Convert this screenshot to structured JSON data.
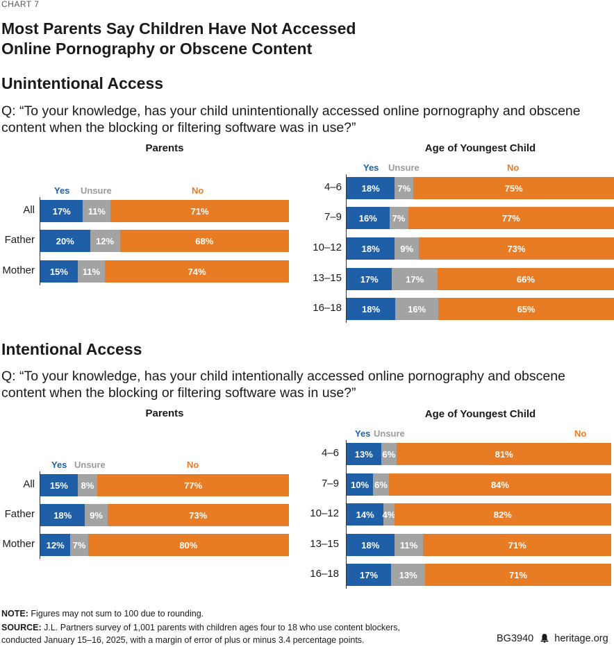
{
  "header": {
    "chart_label": "CHART 7",
    "title_line1": "Most Parents Say Children Have Not Accessed",
    "title_line2": "Online Pornography or Obscene Content"
  },
  "sections": {
    "unintentional": {
      "title": "Unintentional Access",
      "question_line1": "Q: “To your knowledge, has your child unintentionally accessed online pornography and obscene",
      "question_line2": "content when the blocking or filtering software was in use?”"
    },
    "intentional": {
      "title": "Intentional Access",
      "question_line1": "Q: “To your knowledge, has your child intentionally accessed online pornography and obscene",
      "question_line2": "content when the blocking or filtering software was in use?”"
    }
  },
  "legend": {
    "yes": "Yes",
    "unsure": "Unsure",
    "no": "No"
  },
  "colors": {
    "yes": "#1f5fa8",
    "unsure": "#a3a3a3",
    "no": "#e87c25"
  },
  "chart_data": [
    {
      "type": "bar",
      "stacked": true,
      "orientation": "horizontal",
      "title": "Parents",
      "section": "Unintentional Access",
      "categories": [
        "All",
        "Father",
        "Mother"
      ],
      "series": [
        {
          "name": "Yes",
          "values": [
            17,
            20,
            15
          ]
        },
        {
          "name": "Unsure",
          "values": [
            11,
            12,
            11
          ]
        },
        {
          "name": "No",
          "values": [
            71,
            68,
            74
          ]
        }
      ]
    },
    {
      "type": "bar",
      "stacked": true,
      "orientation": "horizontal",
      "title": "Age of Youngest Child",
      "section": "Unintentional Access",
      "categories": [
        "4–6",
        "7–9",
        "10–12",
        "13–15",
        "16–18"
      ],
      "series": [
        {
          "name": "Yes",
          "values": [
            18,
            16,
            18,
            17,
            18
          ]
        },
        {
          "name": "Unsure",
          "values": [
            7,
            7,
            9,
            17,
            16
          ]
        },
        {
          "name": "No",
          "values": [
            75,
            77,
            73,
            66,
            65
          ]
        }
      ]
    },
    {
      "type": "bar",
      "stacked": true,
      "orientation": "horizontal",
      "title": "Parents",
      "section": "Intentional Access",
      "categories": [
        "All",
        "Father",
        "Mother"
      ],
      "series": [
        {
          "name": "Yes",
          "values": [
            15,
            18,
            12
          ]
        },
        {
          "name": "Unsure",
          "values": [
            8,
            9,
            7
          ]
        },
        {
          "name": "No",
          "values": [
            77,
            73,
            80
          ]
        }
      ]
    },
    {
      "type": "bar",
      "stacked": true,
      "orientation": "horizontal",
      "title": "Age of Youngest Child",
      "section": "Intentional Access",
      "categories": [
        "4–6",
        "7–9",
        "10–12",
        "13–15",
        "16–18"
      ],
      "series": [
        {
          "name": "Yes",
          "values": [
            13,
            10,
            14,
            18,
            17
          ]
        },
        {
          "name": "Unsure",
          "values": [
            6,
            6,
            4,
            11,
            13
          ]
        },
        {
          "name": "No",
          "values": [
            81,
            84,
            82,
            71,
            71
          ]
        }
      ]
    }
  ],
  "footer": {
    "note_label": "NOTE:",
    "note_text": " Figures may not sum to 100 due to rounding.",
    "source_label": "SOURCE:",
    "source_text_line1": " J.L. Partners survey of 1,001 parents with children ages four to 18 who use content blockers,",
    "source_text_line2": "conducted January 15–16, 2025, with a margin of error of plus or minus 3.4 percentage points.",
    "code": "BG3940",
    "site": "heritage.org",
    "bell_icon": "bell-icon"
  }
}
